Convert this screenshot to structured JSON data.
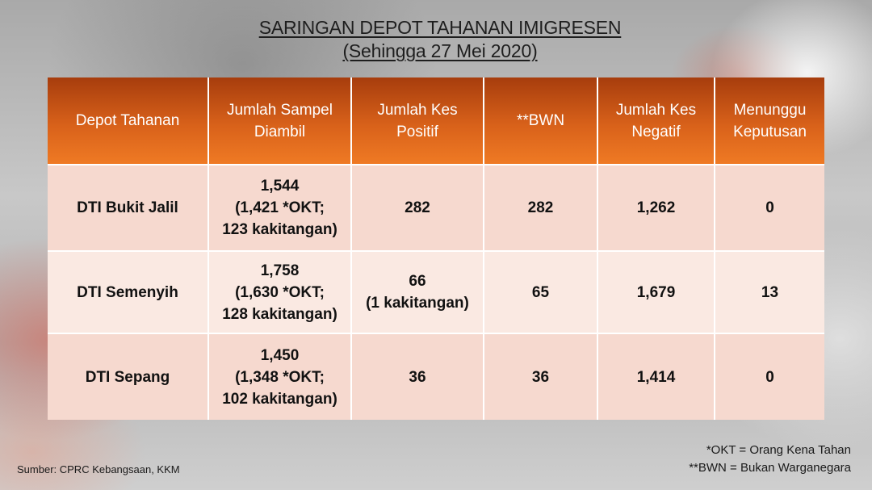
{
  "title": {
    "line1": "SARINGAN DEPOT TAHANAN IMIGRESEN",
    "line2": "(Sehingga 27 Mei 2020)"
  },
  "table": {
    "headers": [
      {
        "lines": [
          "Depot Tahanan"
        ]
      },
      {
        "lines": [
          "Jumlah Sampel",
          "Diambil"
        ]
      },
      {
        "lines": [
          "Jumlah Kes",
          "Positif"
        ]
      },
      {
        "lines": [
          "**BWN"
        ]
      },
      {
        "lines": [
          "Jumlah Kes",
          "Negatif"
        ]
      },
      {
        "lines": [
          "Menunggu",
          "Keputusan"
        ]
      }
    ],
    "rows": [
      {
        "depot": "DTI Bukit Jalil",
        "sampel": [
          "1,544",
          "(1,421 *OKT;",
          "123 kakitangan)"
        ],
        "positif": [
          "282"
        ],
        "bwn": "282",
        "negatif": "1,262",
        "menunggu": "0"
      },
      {
        "depot": "DTI Semenyih",
        "sampel": [
          "1,758",
          "(1,630 *OKT;",
          "128 kakitangan)"
        ],
        "positif": [
          "66",
          "(1 kakitangan)"
        ],
        "bwn": "65",
        "negatif": "1,679",
        "menunggu": "13"
      },
      {
        "depot": "DTI Sepang",
        "sampel": [
          "1,450",
          "(1,348 *OKT;",
          "102 kakitangan)"
        ],
        "positif": [
          "36"
        ],
        "bwn": "36",
        "negatif": "1,414",
        "menunggu": "0"
      }
    ]
  },
  "footer": {
    "source": "Sumber: CPRC Kebangsaan, KKM",
    "note_okt": "*OKT = Orang Kena Tahan",
    "note_bwn": "**BWN = Bukan Warganegara"
  }
}
